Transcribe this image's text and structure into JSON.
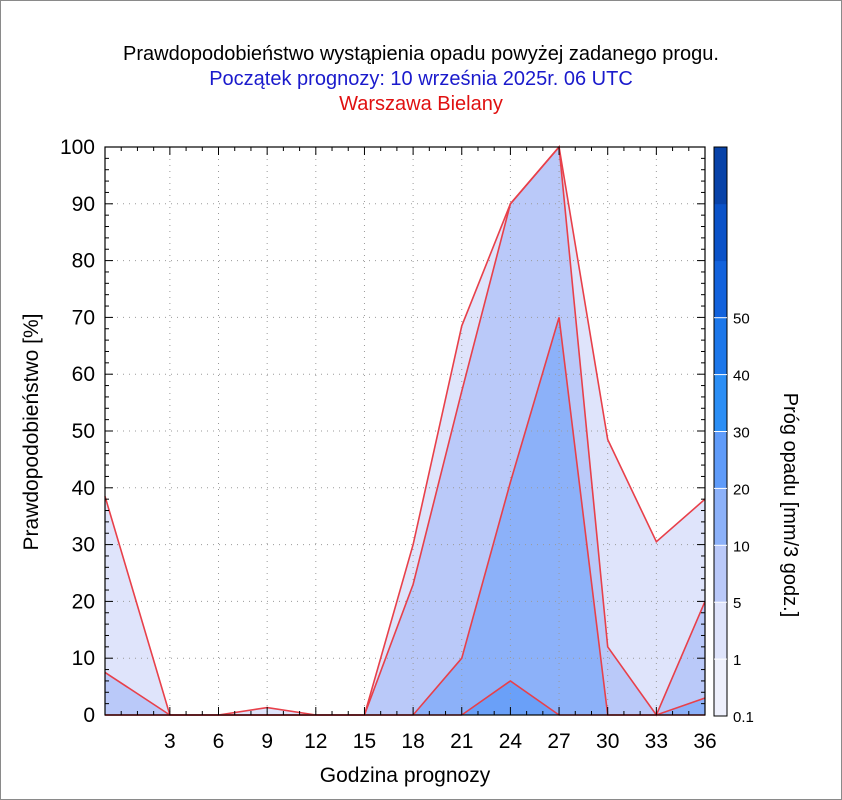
{
  "titles": {
    "line1": "Prawdopodobieństwo wystąpienia opadu powyżej zadanego progu.",
    "line2": "Początek prognozy: 10 września 2025r. 06 UTC",
    "line3": "Warszawa Bielany"
  },
  "colors": {
    "title1": "#000000",
    "title2": "#1a1acc",
    "title3": "#e01010",
    "outline": "#e8404a",
    "grid": "#9a9a9a"
  },
  "chart_data": {
    "type": "area",
    "xlabel": "Godzina prognozy",
    "ylabel": "Prawdopodobieństwo [%]",
    "xlim": [
      -1,
      36
    ],
    "ylim": [
      0,
      100
    ],
    "x": [
      -1,
      3,
      6,
      9,
      12,
      15,
      18,
      21,
      24,
      27,
      30,
      33,
      36
    ],
    "x_ticks": [
      3,
      6,
      9,
      12,
      15,
      18,
      21,
      24,
      27,
      30,
      33,
      36
    ],
    "y_ticks": [
      0,
      10,
      20,
      30,
      40,
      50,
      60,
      70,
      80,
      90,
      100
    ],
    "grid": true,
    "series": [
      {
        "name": "0.1",
        "color": "#dfe4fb",
        "values": [
          38.5,
          0,
          0,
          1.3,
          0,
          0,
          30,
          68.5,
          90,
          100,
          48.5,
          30.5,
          38
        ]
      },
      {
        "name": "1",
        "color": "#bac9f9",
        "values": [
          7.5,
          0,
          0,
          0,
          0,
          0,
          23,
          57,
          90,
          100,
          12,
          0,
          20
        ]
      },
      {
        "name": "5",
        "color": "#8cb1f9",
        "values": [
          0,
          0,
          0,
          0,
          0,
          0,
          0,
          10,
          41,
          70,
          0,
          0,
          3
        ]
      },
      {
        "name": "10",
        "color": "#6aa0f8",
        "values": [
          0,
          0,
          0,
          0,
          0,
          0,
          0,
          0,
          6,
          0,
          0,
          0,
          0
        ]
      }
    ],
    "colorbar": {
      "label": "Próg opadu [mm/3 godz.]",
      "tick_labels": [
        "0.1",
        "1",
        "5",
        "10",
        "20",
        "30",
        "40",
        "50"
      ],
      "bands": [
        "#eef0fc",
        "#dfe4fb",
        "#bac9f9",
        "#8cb1f9",
        "#5f9bf9",
        "#2b8ef5",
        "#1c77ea",
        "#1262dc",
        "#0a52c8",
        "#0842a8"
      ]
    }
  }
}
